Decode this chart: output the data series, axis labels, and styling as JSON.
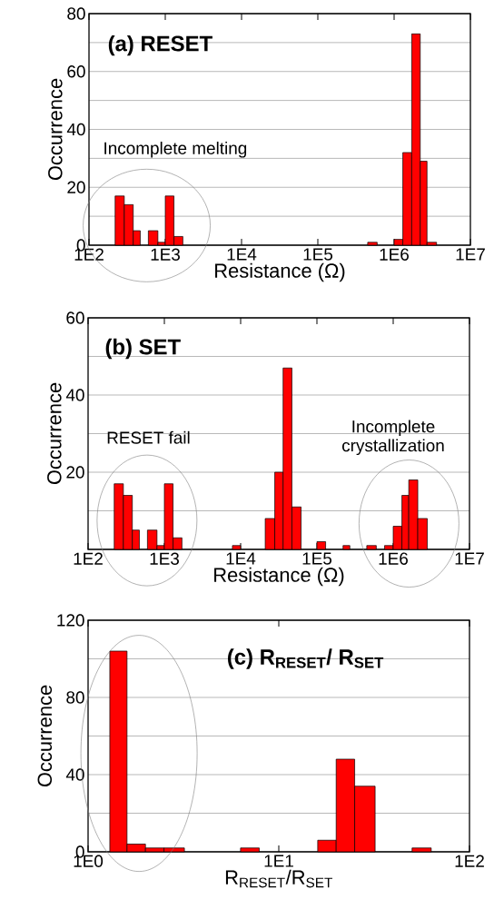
{
  "chart_data": [
    {
      "type": "histogram",
      "title": "(a) RESET",
      "xlabel": "Resistance (Ω)",
      "ylabel": "Occurrence",
      "annotations": [
        "Incomplete melting"
      ],
      "bins": [
        220,
        290,
        380,
        470,
        600,
        800,
        1000,
        1300,
        1700,
        450000,
        600000,
        1000000,
        1300000,
        1700000,
        2200000,
        2700000,
        3600000
      ],
      "values": [
        17,
        14,
        5,
        0,
        5,
        1,
        17,
        3,
        0,
        1,
        0,
        2,
        32,
        73,
        29,
        1
      ],
      "color": "#ff0000",
      "log": "x",
      "xlim": [
        100,
        10000000
      ],
      "xticks": [
        {
          "value": 100,
          "label": "1E2"
        },
        {
          "value": 1000,
          "label": "1E3"
        },
        {
          "value": 10000,
          "label": "1E4"
        },
        {
          "value": 100000,
          "label": "1E5"
        },
        {
          "value": 1000000,
          "label": "1E6"
        },
        {
          "value": 10000000,
          "label": "1E7"
        }
      ],
      "ylim": [
        0,
        80
      ],
      "yticks": [
        0,
        {
          "value": 10,
          "label": null
        },
        20,
        {
          "value": 30,
          "label": null
        },
        40,
        {
          "value": 50,
          "label": null
        },
        60,
        {
          "value": 70,
          "label": null
        },
        80
      ],
      "grid": "y"
    },
    {
      "type": "histogram",
      "title": "(b) SET",
      "xlabel": "Resistance (Ω)",
      "ylabel": "Occurrence",
      "annotations": [
        "RESET fail",
        "Incomplete crystallization"
      ],
      "bins": [
        220,
        290,
        380,
        470,
        600,
        800,
        1000,
        1300,
        1700,
        7800,
        10000,
        21000,
        28000,
        36000,
        47000,
        62000,
        100000,
        130000,
        220000,
        270000,
        450000,
        600000,
        770000,
        1000000,
        1300000,
        1600000,
        2100000,
        2800000
      ],
      "values": [
        17,
        14,
        5,
        0,
        5,
        1,
        17,
        3,
        0,
        1,
        0,
        8,
        20,
        47,
        11,
        0,
        2,
        0,
        1,
        0,
        1,
        0,
        1,
        6,
        14,
        18,
        8
      ],
      "color": "#ff0000",
      "log": "x",
      "xlim": [
        100,
        10000000
      ],
      "xticks": [
        {
          "value": 100,
          "label": "1E2"
        },
        {
          "value": 1000,
          "label": "1E3"
        },
        {
          "value": 10000,
          "label": "1E4"
        },
        {
          "value": 100000,
          "label": "1E5"
        },
        {
          "value": 1000000,
          "label": "1E6"
        },
        {
          "value": 10000000,
          "label": "1E7"
        }
      ],
      "ylim": [
        0,
        60
      ],
      "yticks": [
        {
          "value": 0,
          "label": null
        },
        {
          "value": 10,
          "label": null
        },
        20,
        {
          "value": 30,
          "label": null
        },
        40,
        {
          "value": 50,
          "label": null
        },
        60
      ],
      "grid": "y"
    },
    {
      "type": "histogram",
      "title": "(c) R$_{RESET}$/ R$_{SET}$",
      "xlabel": "R$_{RESET}$/R$_{SET}$",
      "ylabel": "Occurrence",
      "bins": [
        1.3,
        1.6,
        2.0,
        2.5,
        3.2,
        6.3,
        7.9,
        16,
        20,
        25,
        32,
        50,
        63
      ],
      "values": [
        104,
        4,
        2,
        2,
        0,
        2,
        0,
        6,
        48,
        34,
        0,
        2
      ],
      "color": "#ff0000",
      "log": "x",
      "xlim": [
        1,
        100
      ],
      "xticks": [
        {
          "value": 1,
          "label": "1E0"
        },
        {
          "value": 10,
          "label": "1E1"
        },
        {
          "value": 100,
          "label": "1E2"
        }
      ],
      "ylim": [
        0,
        120
      ],
      "yticks": [
        0,
        {
          "value": 20,
          "label": null
        },
        40,
        {
          "value": 60,
          "label": null
        },
        80,
        {
          "value": 100,
          "label": null
        },
        120
      ],
      "grid": "y"
    }
  ]
}
